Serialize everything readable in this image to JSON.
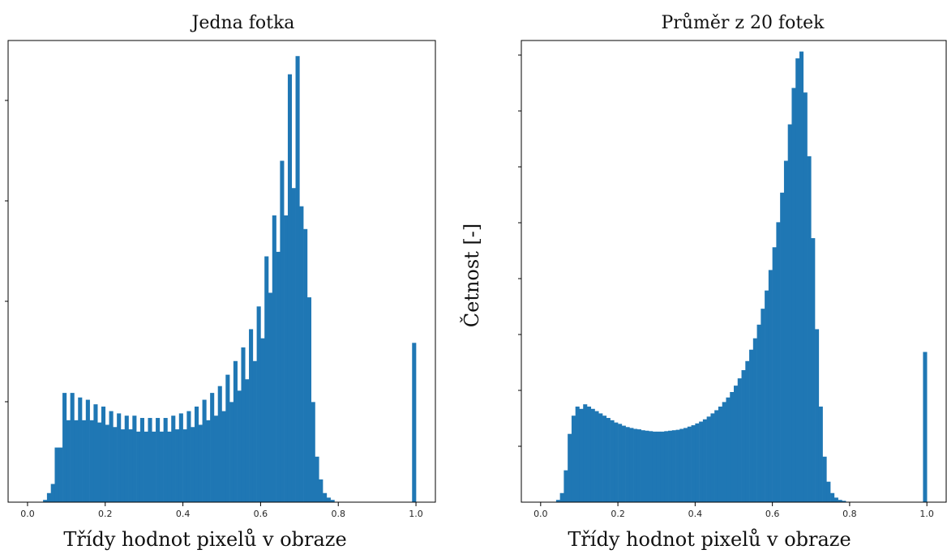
{
  "chart_data": [
    {
      "type": "bar",
      "title": "Jedna fotka",
      "xlabel": "Třídy hodnot pixelů v obraze",
      "ylabel": "",
      "xlim": [
        -0.05,
        1.05
      ],
      "ylim": [
        0,
        1.0
      ],
      "x_ticks": [
        "0.0",
        "0.2",
        "0.4",
        "0.6",
        "0.8",
        "1.0"
      ],
      "bin_width": 0.01,
      "bar_color": "#1f77b4",
      "values": [
        [
          0.04,
          0.005
        ],
        [
          0.05,
          0.02
        ],
        [
          0.06,
          0.04
        ],
        [
          0.07,
          0.12
        ],
        [
          0.08,
          0.12
        ],
        [
          0.09,
          0.24
        ],
        [
          0.1,
          0.18
        ],
        [
          0.11,
          0.24
        ],
        [
          0.12,
          0.18
        ],
        [
          0.13,
          0.23
        ],
        [
          0.14,
          0.18
        ],
        [
          0.15,
          0.225
        ],
        [
          0.16,
          0.18
        ],
        [
          0.17,
          0.215
        ],
        [
          0.18,
          0.175
        ],
        [
          0.19,
          0.21
        ],
        [
          0.2,
          0.17
        ],
        [
          0.21,
          0.2
        ],
        [
          0.22,
          0.165
        ],
        [
          0.23,
          0.195
        ],
        [
          0.24,
          0.16
        ],
        [
          0.25,
          0.19
        ],
        [
          0.26,
          0.16
        ],
        [
          0.27,
          0.19
        ],
        [
          0.28,
          0.155
        ],
        [
          0.29,
          0.185
        ],
        [
          0.3,
          0.155
        ],
        [
          0.31,
          0.185
        ],
        [
          0.32,
          0.155
        ],
        [
          0.33,
          0.185
        ],
        [
          0.34,
          0.155
        ],
        [
          0.35,
          0.185
        ],
        [
          0.36,
          0.155
        ],
        [
          0.37,
          0.19
        ],
        [
          0.38,
          0.16
        ],
        [
          0.39,
          0.195
        ],
        [
          0.4,
          0.16
        ],
        [
          0.41,
          0.2
        ],
        [
          0.42,
          0.165
        ],
        [
          0.43,
          0.21
        ],
        [
          0.44,
          0.17
        ],
        [
          0.45,
          0.225
        ],
        [
          0.46,
          0.18
        ],
        [
          0.47,
          0.24
        ],
        [
          0.48,
          0.19
        ],
        [
          0.49,
          0.255
        ],
        [
          0.5,
          0.2
        ],
        [
          0.51,
          0.28
        ],
        [
          0.52,
          0.22
        ],
        [
          0.53,
          0.31
        ],
        [
          0.54,
          0.245
        ],
        [
          0.55,
          0.34
        ],
        [
          0.56,
          0.27
        ],
        [
          0.57,
          0.38
        ],
        [
          0.58,
          0.31
        ],
        [
          0.59,
          0.43
        ],
        [
          0.6,
          0.36
        ],
        [
          0.61,
          0.54
        ],
        [
          0.62,
          0.46
        ],
        [
          0.63,
          0.63
        ],
        [
          0.64,
          0.55
        ],
        [
          0.65,
          0.75
        ],
        [
          0.66,
          0.63
        ],
        [
          0.67,
          0.94
        ],
        [
          0.68,
          0.69
        ],
        [
          0.69,
          0.98
        ],
        [
          0.7,
          0.65
        ],
        [
          0.71,
          0.6
        ],
        [
          0.72,
          0.45
        ],
        [
          0.73,
          0.22
        ],
        [
          0.74,
          0.1
        ],
        [
          0.75,
          0.05
        ],
        [
          0.76,
          0.02
        ],
        [
          0.77,
          0.01
        ],
        [
          0.78,
          0.005
        ],
        [
          0.99,
          0.35
        ]
      ]
    },
    {
      "type": "bar",
      "title": "Průměr z 20 fotek",
      "xlabel": "Třídy hodnot pixelů v obraze",
      "ylabel": "Četnost [-]",
      "xlim": [
        -0.05,
        1.05
      ],
      "ylim": [
        0,
        1.0
      ],
      "x_ticks": [
        "0.0",
        "0.2",
        "0.4",
        "0.6",
        "0.8",
        "1.0"
      ],
      "bin_width": 0.01,
      "bar_color": "#1f77b4",
      "values": [
        [
          0.04,
          0.005
        ],
        [
          0.05,
          0.02
        ],
        [
          0.06,
          0.07
        ],
        [
          0.07,
          0.15
        ],
        [
          0.08,
          0.19
        ],
        [
          0.09,
          0.21
        ],
        [
          0.1,
          0.205
        ],
        [
          0.11,
          0.215
        ],
        [
          0.12,
          0.21
        ],
        [
          0.13,
          0.205
        ],
        [
          0.14,
          0.2
        ],
        [
          0.15,
          0.195
        ],
        [
          0.16,
          0.19
        ],
        [
          0.17,
          0.185
        ],
        [
          0.18,
          0.18
        ],
        [
          0.19,
          0.175
        ],
        [
          0.2,
          0.172
        ],
        [
          0.21,
          0.168
        ],
        [
          0.22,
          0.165
        ],
        [
          0.23,
          0.163
        ],
        [
          0.24,
          0.161
        ],
        [
          0.25,
          0.16
        ],
        [
          0.26,
          0.158
        ],
        [
          0.27,
          0.157
        ],
        [
          0.28,
          0.156
        ],
        [
          0.29,
          0.155
        ],
        [
          0.3,
          0.155
        ],
        [
          0.31,
          0.155
        ],
        [
          0.32,
          0.156
        ],
        [
          0.33,
          0.157
        ],
        [
          0.34,
          0.158
        ],
        [
          0.35,
          0.159
        ],
        [
          0.36,
          0.161
        ],
        [
          0.37,
          0.163
        ],
        [
          0.38,
          0.166
        ],
        [
          0.39,
          0.169
        ],
        [
          0.4,
          0.173
        ],
        [
          0.41,
          0.177
        ],
        [
          0.42,
          0.182
        ],
        [
          0.43,
          0.188
        ],
        [
          0.44,
          0.195
        ],
        [
          0.45,
          0.202
        ],
        [
          0.46,
          0.21
        ],
        [
          0.47,
          0.22
        ],
        [
          0.48,
          0.23
        ],
        [
          0.49,
          0.242
        ],
        [
          0.5,
          0.256
        ],
        [
          0.51,
          0.272
        ],
        [
          0.52,
          0.29
        ],
        [
          0.53,
          0.31
        ],
        [
          0.54,
          0.335
        ],
        [
          0.55,
          0.36
        ],
        [
          0.56,
          0.39
        ],
        [
          0.57,
          0.425
        ],
        [
          0.58,
          0.465
        ],
        [
          0.59,
          0.51
        ],
        [
          0.6,
          0.56
        ],
        [
          0.61,
          0.615
        ],
        [
          0.62,
          0.68
        ],
        [
          0.63,
          0.75
        ],
        [
          0.64,
          0.83
        ],
        [
          0.65,
          0.91
        ],
        [
          0.66,
          0.975
        ],
        [
          0.67,
          0.99
        ],
        [
          0.68,
          0.9
        ],
        [
          0.69,
          0.76
        ],
        [
          0.7,
          0.58
        ],
        [
          0.71,
          0.38
        ],
        [
          0.72,
          0.21
        ],
        [
          0.73,
          0.1
        ],
        [
          0.74,
          0.045
        ],
        [
          0.75,
          0.02
        ],
        [
          0.76,
          0.01
        ],
        [
          0.77,
          0.005
        ],
        [
          0.78,
          0.003
        ],
        [
          0.99,
          0.33
        ]
      ]
    }
  ]
}
